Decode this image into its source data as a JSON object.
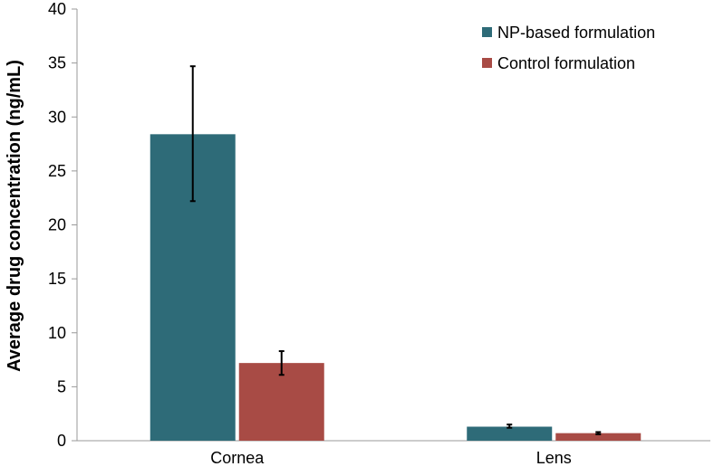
{
  "chart_data": {
    "type": "bar",
    "title": "",
    "xlabel": "",
    "ylabel": "Average drug concentration (ng/mL)",
    "categories": [
      "Cornea",
      "Lens"
    ],
    "ylim": [
      0,
      40
    ],
    "yticks": [
      0,
      5,
      10,
      15,
      20,
      25,
      30,
      35,
      40
    ],
    "grid": false,
    "legend_position": "top-right",
    "series": [
      {
        "name": "NP-based formulation",
        "color": "#2E6B78",
        "values": [
          28.4,
          1.3
        ],
        "errors": [
          {
            "low": 22.2,
            "high": 34.7
          },
          {
            "low": 1.2,
            "high": 1.5
          }
        ]
      },
      {
        "name": "Control formulation",
        "color": "#A84B45",
        "values": [
          7.2,
          0.7
        ],
        "errors": [
          {
            "low": 6.1,
            "high": 8.3
          },
          {
            "low": 0.6,
            "high": 0.8
          }
        ]
      }
    ]
  }
}
